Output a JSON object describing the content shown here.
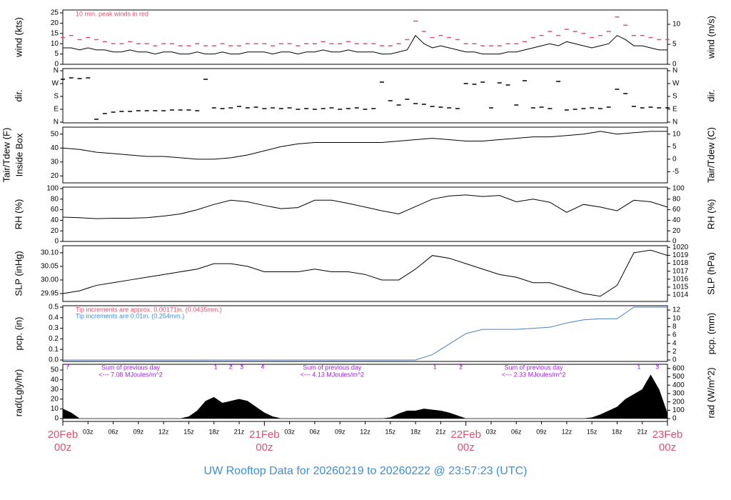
{
  "x_axis": {
    "xlim": [
      0,
      72
    ],
    "xticks": [
      {
        "value": 3,
        "label": "03z"
      },
      {
        "value": 6,
        "label": "06z"
      },
      {
        "value": 9,
        "label": "09z"
      },
      {
        "value": 12,
        "label": "12z"
      },
      {
        "value": 15,
        "label": "15z"
      },
      {
        "value": 18,
        "label": "18z"
      },
      {
        "value": 21,
        "label": "21z"
      },
      {
        "value": 27,
        "label": "03z"
      },
      {
        "value": 30,
        "label": "06z"
      },
      {
        "value": 33,
        "label": "09z"
      },
      {
        "value": 36,
        "label": "12z"
      },
      {
        "value": 39,
        "label": "15z"
      },
      {
        "value": 42,
        "label": "18z"
      },
      {
        "value": 45,
        "label": "21z"
      },
      {
        "value": 51,
        "label": "03z"
      },
      {
        "value": 54,
        "label": "06z"
      },
      {
        "value": 57,
        "label": "09z"
      },
      {
        "value": 60,
        "label": "12z"
      },
      {
        "value": 63,
        "label": "15z"
      },
      {
        "value": 66,
        "label": "18z"
      },
      {
        "value": 69,
        "label": "21z"
      }
    ],
    "day_labels": [
      {
        "value": 0,
        "label": "20Feb",
        "hour": "00z"
      },
      {
        "value": 24,
        "label": "21Feb",
        "hour": "00z"
      },
      {
        "value": 48,
        "label": "22Feb",
        "hour": "00z"
      },
      {
        "value": 72,
        "label": "23Feb",
        "hour": "00z"
      }
    ]
  },
  "footer": "UW Rooftop Data for 20260219  to  20260222 @ 23:57:23  (UTC)",
  "chart_data": [
    {
      "type": "line",
      "ylabel": "wind (kts)",
      "y2label": "wind (m/s)",
      "ylim": [
        0,
        26.4
      ],
      "yticks": [
        0,
        5,
        10,
        15,
        20,
        25
      ],
      "y2lim": [
        0,
        13.58
      ],
      "y2ticks": [
        0,
        5,
        10
      ],
      "annotations": [
        {
          "text": "10 min. peak winds in red",
          "color": "#e0506e"
        }
      ],
      "x": [
        0,
        1,
        2,
        3,
        4,
        5,
        6,
        7,
        8,
        9,
        10,
        11,
        12,
        13,
        14,
        15,
        16,
        17,
        18,
        19,
        20,
        21,
        22,
        23,
        24,
        25,
        26,
        27,
        28,
        29,
        30,
        31,
        32,
        33,
        34,
        35,
        36,
        37,
        38,
        39,
        40,
        41,
        42,
        43,
        44,
        45,
        46,
        47,
        48,
        49,
        50,
        51,
        52,
        53,
        54,
        55,
        56,
        57,
        58,
        59,
        60,
        61,
        62,
        63,
        64,
        65,
        66,
        67,
        68,
        69,
        70,
        71,
        72
      ],
      "series": [
        {
          "style": "dash",
          "color": "#e0506e",
          "values": [
            13,
            14,
            12,
            13,
            12,
            11,
            10,
            10,
            11,
            10,
            10,
            9,
            10,
            10,
            9,
            9,
            10,
            9,
            9,
            10,
            9,
            9,
            10,
            10,
            10,
            9,
            10,
            10,
            9,
            10,
            10,
            11,
            10,
            10,
            11,
            10,
            10,
            10,
            9,
            9,
            10,
            12,
            21,
            16,
            13,
            14,
            13,
            12,
            10,
            10,
            9,
            9,
            9,
            10,
            10,
            11,
            13,
            14,
            16,
            14,
            17,
            16,
            15,
            13,
            14,
            16,
            23,
            19,
            14,
            14,
            13,
            12,
            12
          ]
        },
        {
          "style": "line",
          "color": "#000000",
          "values": [
            8,
            8,
            7,
            8,
            7,
            7,
            6,
            6,
            7,
            6,
            6,
            5,
            6,
            6,
            5,
            5,
            6,
            5,
            5,
            6,
            5,
            5,
            6,
            6,
            6,
            5,
            6,
            6,
            5,
            6,
            6,
            7,
            6,
            6,
            7,
            6,
            6,
            6,
            5,
            5,
            6,
            7,
            14,
            10,
            8,
            9,
            8,
            7,
            6,
            6,
            5,
            5,
            5,
            6,
            6,
            7,
            8,
            9,
            10,
            9,
            11,
            10,
            9,
            8,
            9,
            10,
            14,
            12,
            9,
            9,
            8,
            7,
            7
          ]
        }
      ]
    },
    {
      "type": "scatter",
      "ylabel": "dir.",
      "y2label": "dir.",
      "ylim": [
        -5,
        375
      ],
      "yticks": [
        {
          "value": 0,
          "label": "N"
        },
        {
          "value": 90,
          "label": "E"
        },
        {
          "value": 180,
          "label": "S"
        },
        {
          "value": 270,
          "label": "W"
        },
        {
          "value": 360,
          "label": "N"
        }
      ],
      "y2lim": [
        -5,
        375
      ],
      "y2ticks": [
        {
          "value": 0,
          "label": "N"
        },
        {
          "value": 90,
          "label": "E"
        },
        {
          "value": 180,
          "label": "S"
        },
        {
          "value": 270,
          "label": "W"
        },
        {
          "value": 360,
          "label": "N"
        }
      ],
      "x": [
        0,
        1,
        2,
        3,
        4,
        5,
        6,
        7,
        8,
        9,
        10,
        11,
        12,
        13,
        14,
        15,
        16,
        17,
        18,
        19,
        20,
        21,
        22,
        23,
        24,
        25,
        26,
        27,
        28,
        29,
        30,
        31,
        32,
        33,
        34,
        35,
        36,
        37,
        38,
        39,
        40,
        41,
        42,
        43,
        44,
        45,
        46,
        47,
        48,
        49,
        50,
        51,
        52,
        53,
        54,
        55,
        56,
        57,
        58,
        59,
        60,
        61,
        62,
        63,
        64,
        65,
        66,
        67,
        68,
        69,
        70,
        71,
        72
      ],
      "series": [
        {
          "style": "dash",
          "color": "#000000",
          "values": [
            300,
            310,
            305,
            310,
            20,
            60,
            70,
            75,
            75,
            80,
            80,
            80,
            80,
            85,
            85,
            85,
            80,
            300,
            100,
            95,
            100,
            110,
            100,
            105,
            95,
            100,
            95,
            100,
            90,
            95,
            90,
            95,
            100,
            90,
            95,
            100,
            90,
            95,
            280,
            150,
            120,
            160,
            130,
            125,
            110,
            105,
            100,
            95,
            270,
            265,
            280,
            100,
            275,
            260,
            120,
            290,
            100,
            105,
            95,
            285,
            85,
            90,
            95,
            100,
            95,
            105,
            230,
            200,
            110,
            100,
            105,
            100,
            100
          ]
        }
      ]
    },
    {
      "type": "line",
      "ylabel": "Tair/Tdew (F)",
      "ylabel2": "Inside Box",
      "y2label": "Tair/Tdew (C)",
      "ylim": [
        15,
        55
      ],
      "yticks": [
        20,
        30,
        40,
        50
      ],
      "y2lim": [
        -9.44,
        12.78
      ],
      "y2ticks": [
        -5,
        0,
        5,
        10
      ],
      "x": [
        0,
        2,
        4,
        6,
        8,
        10,
        12,
        14,
        16,
        18,
        20,
        22,
        24,
        26,
        28,
        30,
        32,
        34,
        36,
        38,
        40,
        42,
        44,
        46,
        48,
        50,
        52,
        54,
        56,
        58,
        60,
        62,
        64,
        66,
        68,
        70,
        72
      ],
      "series": [
        {
          "style": "line",
          "color": "#000000",
          "values": [
            40,
            39,
            37,
            36,
            35,
            34,
            34,
            33,
            32,
            32,
            33,
            35,
            38,
            41,
            43,
            44,
            44,
            44,
            44,
            44,
            45,
            46,
            47,
            46,
            45,
            45,
            46,
            47,
            48,
            48,
            49,
            50,
            52,
            50,
            51,
            52,
            52
          ]
        }
      ]
    },
    {
      "type": "line",
      "ylabel": "RH (%)",
      "y2label": "RH (%)",
      "ylim": [
        0,
        102.7
      ],
      "yticks": [
        0,
        20,
        40,
        60,
        80,
        100
      ],
      "y2lim": [
        0,
        102.7
      ],
      "y2ticks": [
        0,
        20,
        40,
        60,
        80,
        100
      ],
      "x": [
        0,
        2,
        4,
        6,
        8,
        10,
        12,
        14,
        16,
        18,
        20,
        22,
        24,
        26,
        28,
        30,
        32,
        34,
        36,
        38,
        40,
        42,
        44,
        46,
        48,
        50,
        52,
        54,
        56,
        58,
        60,
        62,
        64,
        66,
        68,
        70,
        72
      ],
      "series": [
        {
          "style": "line",
          "color": "#000000",
          "values": [
            46,
            45,
            43,
            44,
            44,
            45,
            48,
            52,
            60,
            70,
            78,
            75,
            68,
            62,
            64,
            78,
            78,
            72,
            65,
            58,
            52,
            66,
            80,
            86,
            88,
            85,
            87,
            75,
            80,
            74,
            55,
            70,
            65,
            58,
            78,
            75,
            65
          ]
        }
      ]
    },
    {
      "type": "line",
      "ylabel": "SLP (inHg)",
      "y2label": "SLP (hPa)",
      "ylim": [
        29.921,
        30.126
      ],
      "yticks": [
        {
          "value": 29.95,
          "label": "29.95"
        },
        {
          "value": 30,
          "label": "30.00"
        },
        {
          "value": 30.05,
          "label": "30.05"
        },
        {
          "value": 30.1,
          "label": "30.10"
        }
      ],
      "y2lim": [
        1013.2,
        1020.2
      ],
      "y2ticks": [
        1014,
        1015,
        1016,
        1017,
        1018,
        1019,
        1020
      ],
      "x": [
        0,
        2,
        4,
        6,
        8,
        10,
        12,
        14,
        16,
        18,
        20,
        22,
        24,
        26,
        28,
        30,
        32,
        34,
        36,
        38,
        40,
        42,
        44,
        46,
        48,
        50,
        52,
        54,
        56,
        58,
        60,
        62,
        64,
        66,
        68,
        70,
        72
      ],
      "series": [
        {
          "style": "line",
          "color": "#000000",
          "values": [
            29.95,
            29.96,
            29.98,
            29.99,
            30.0,
            30.01,
            30.02,
            30.03,
            30.04,
            30.06,
            30.06,
            30.05,
            30.03,
            30.03,
            30.03,
            30.04,
            30.03,
            30.03,
            30.02,
            30.0,
            30.0,
            30.04,
            30.09,
            30.08,
            30.06,
            30.04,
            30.02,
            30.01,
            29.99,
            29.99,
            29.97,
            29.95,
            29.94,
            29.98,
            30.1,
            30.11,
            30.09
          ]
        }
      ]
    },
    {
      "type": "line",
      "ylabel": "pcp. (in)",
      "y2label": "pcp. (mm)",
      "ylim": [
        -0.0135,
        0.5135
      ],
      "yticks": [
        {
          "value": 0,
          "label": "0.0"
        },
        0.1,
        0.2,
        0.3,
        0.4,
        0.5
      ],
      "y2lim": [
        -0.343,
        13.04
      ],
      "y2ticks": [
        0,
        2,
        4,
        6,
        8,
        10,
        12
      ],
      "annotations": [
        {
          "text": "Tip increments are approx. 0.00171in. (0.0435mm.)",
          "color": "#e0506e"
        },
        {
          "text": "Tip increments are 0.01in. (0.254mm.)",
          "color": "#3a8fd8"
        }
      ],
      "x": [
        0,
        2,
        4,
        6,
        8,
        10,
        12,
        14,
        16,
        18,
        20,
        22,
        24,
        26,
        28,
        30,
        32,
        34,
        36,
        38,
        40,
        42,
        44,
        46,
        48,
        50,
        52,
        54,
        56,
        58,
        60,
        62,
        64,
        66,
        68,
        70,
        72
      ],
      "series": [
        {
          "style": "line",
          "color": "#4a7fc0",
          "values": [
            0,
            0,
            0,
            0,
            0,
            0,
            0,
            0,
            0,
            0,
            0,
            0,
            0,
            0,
            0,
            0,
            0,
            0,
            0,
            0,
            0,
            0,
            0.05,
            0.15,
            0.25,
            0.29,
            0.29,
            0.29,
            0.3,
            0.31,
            0.35,
            0.38,
            0.39,
            0.39,
            0.5,
            0.5,
            0.5
          ]
        }
      ]
    },
    {
      "type": "area",
      "ylabel": "rad(Lgly/hr)",
      "y2label": "rad (W/m^2)",
      "ylim": [
        -2.94,
        55.9
      ],
      "yticks": [
        0,
        10,
        20,
        30,
        40,
        50
      ],
      "y2lim": [
        -34.2,
        650
      ],
      "y2ticks": [
        0,
        100,
        200,
        300,
        400,
        500,
        600
      ],
      "markers": [
        {
          "x": 0.6,
          "label": "7"
        },
        {
          "x": 18.2,
          "label": "1"
        },
        {
          "x": 20,
          "label": "2"
        },
        {
          "x": 21.3,
          "label": "3"
        },
        {
          "x": 23.8,
          "label": "4"
        },
        {
          "x": 44.3,
          "label": "1"
        },
        {
          "x": 47.4,
          "label": "2"
        },
        {
          "x": 68.6,
          "label": "1"
        },
        {
          "x": 70.8,
          "label": "3"
        }
      ],
      "daily_notes": [
        {
          "lines": [
            "Sum of previous day",
            "<--- 7.08 MJoules/m^2"
          ]
        },
        {
          "lines": [
            "Sum of previous day",
            "<--- 4.13 MJoules/m^2"
          ]
        },
        {
          "lines": [
            "Sum of previous day",
            "<--- 2.33 MJoules/m^2"
          ]
        }
      ],
      "x": [
        0,
        1,
        2,
        3,
        4,
        5,
        6,
        7,
        8,
        9,
        10,
        11,
        12,
        13,
        14,
        15,
        16,
        17,
        18,
        19,
        20,
        21,
        22,
        23,
        24,
        25,
        26,
        27,
        28,
        29,
        30,
        31,
        32,
        33,
        34,
        35,
        36,
        37,
        38,
        39,
        40,
        41,
        42,
        43,
        44,
        45,
        46,
        47,
        48,
        49,
        50,
        51,
        52,
        53,
        54,
        55,
        56,
        57,
        58,
        59,
        60,
        61,
        62,
        63,
        64,
        65,
        66,
        67,
        68,
        69,
        70,
        71,
        72
      ],
      "series": [
        {
          "style": "area",
          "color": "#000000",
          "values": [
            10,
            6,
            0,
            0,
            0,
            0,
            0,
            0,
            0,
            0,
            0,
            0,
            0,
            0,
            0,
            2,
            8,
            18,
            22,
            16,
            18,
            20,
            18,
            12,
            6,
            2,
            0,
            0,
            0,
            0,
            0,
            0,
            0,
            0,
            0,
            0,
            0,
            0,
            0,
            1,
            5,
            8,
            8,
            10,
            9,
            8,
            6,
            3,
            0,
            0,
            0,
            0,
            0,
            0,
            0,
            0,
            0,
            0,
            0,
            0,
            0,
            0,
            0,
            1,
            4,
            8,
            12,
            20,
            25,
            30,
            45,
            30,
            5
          ]
        }
      ]
    }
  ]
}
